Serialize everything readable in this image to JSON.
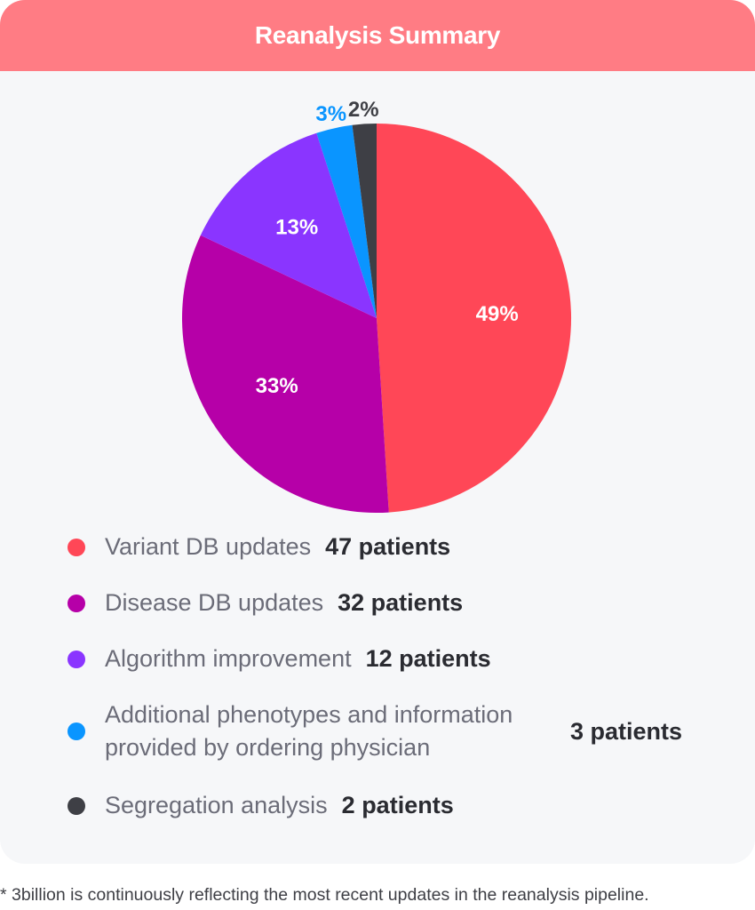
{
  "chart_data": {
    "type": "pie",
    "title": "Reanalysis Summary",
    "slices": [
      {
        "label": "Variant DB updates",
        "count": "47 patients",
        "value": 49,
        "pct_label": "49%",
        "color": "#ff4757"
      },
      {
        "label": "Disease DB updates",
        "count": "32 patients",
        "value": 33,
        "pct_label": "33%",
        "color": "#b600a8"
      },
      {
        "label": "Algorithm improvement",
        "count": "12 patients",
        "value": 13,
        "pct_label": "13%",
        "color": "#8a35ff"
      },
      {
        "label": "Additional phenotypes and information provided by ordering physician",
        "count": "3 patients",
        "value": 3,
        "pct_label": "3%",
        "color": "#0a95ff"
      },
      {
        "label": "Segregation analysis",
        "count": "2 patients",
        "value": 2,
        "pct_label": "2%",
        "color": "#3e3f45"
      }
    ],
    "legend_position": "bottom"
  },
  "footnote": "* 3billion is continuously reflecting the most recent updates in the reanalysis pipeline."
}
